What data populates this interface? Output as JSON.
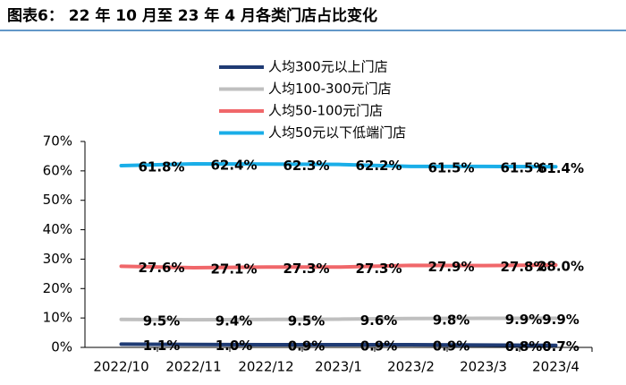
{
  "chart_data": {
    "type": "line",
    "title": "图表6： 22 年 10 月至 23 年 4 月各类门店占比变化",
    "categories": [
      "2022/10",
      "2022/11",
      "2022/12",
      "2023/1",
      "2023/2",
      "2023/3",
      "2023/4"
    ],
    "series": [
      {
        "name": "人均300元以上门店",
        "color": "#1f3b74",
        "values": [
          1.1,
          1.0,
          0.9,
          0.9,
          0.9,
          0.8,
          0.7
        ],
        "value_labels": [
          "1.1%",
          "1.0%",
          "0.9%",
          "0.9%",
          "0.9%",
          "0.8%",
          "0.7%"
        ]
      },
      {
        "name": "人均100-300元门店",
        "color": "#bfbfbf",
        "values": [
          9.5,
          9.4,
          9.5,
          9.6,
          9.8,
          9.9,
          9.9
        ],
        "value_labels": [
          "9.5%",
          "9.4%",
          "9.5%",
          "9.6%",
          "9.8%",
          "9.9%",
          "9.9%"
        ]
      },
      {
        "name": "人均50-100元门店",
        "color": "#f0676a",
        "values": [
          27.6,
          27.1,
          27.3,
          27.3,
          27.9,
          27.8,
          28.0
        ],
        "value_labels": [
          "27.6%",
          "27.1%",
          "27.3%",
          "27.3%",
          "27.9%",
          "27.8%",
          "28.0%"
        ]
      },
      {
        "name": "人均50元以下低端门店",
        "color": "#1aaee8",
        "values": [
          61.8,
          62.4,
          62.3,
          62.2,
          61.5,
          61.5,
          61.4
        ],
        "value_labels": [
          "61.8%",
          "62.4%",
          "62.3%",
          "62.2%",
          "61.5%",
          "61.5%",
          "61.4%"
        ]
      }
    ],
    "ylim": [
      0,
      70
    ],
    "yticks": [
      {
        "value": 0,
        "label": "0%"
      },
      {
        "value": 10,
        "label": "10%"
      },
      {
        "value": 20,
        "label": "20%"
      },
      {
        "value": 30,
        "label": "30%"
      },
      {
        "value": 40,
        "label": "40%"
      },
      {
        "value": 50,
        "label": "50%"
      },
      {
        "value": 60,
        "label": "60%"
      },
      {
        "value": 70,
        "label": "70%"
      }
    ],
    "legend": "top"
  }
}
